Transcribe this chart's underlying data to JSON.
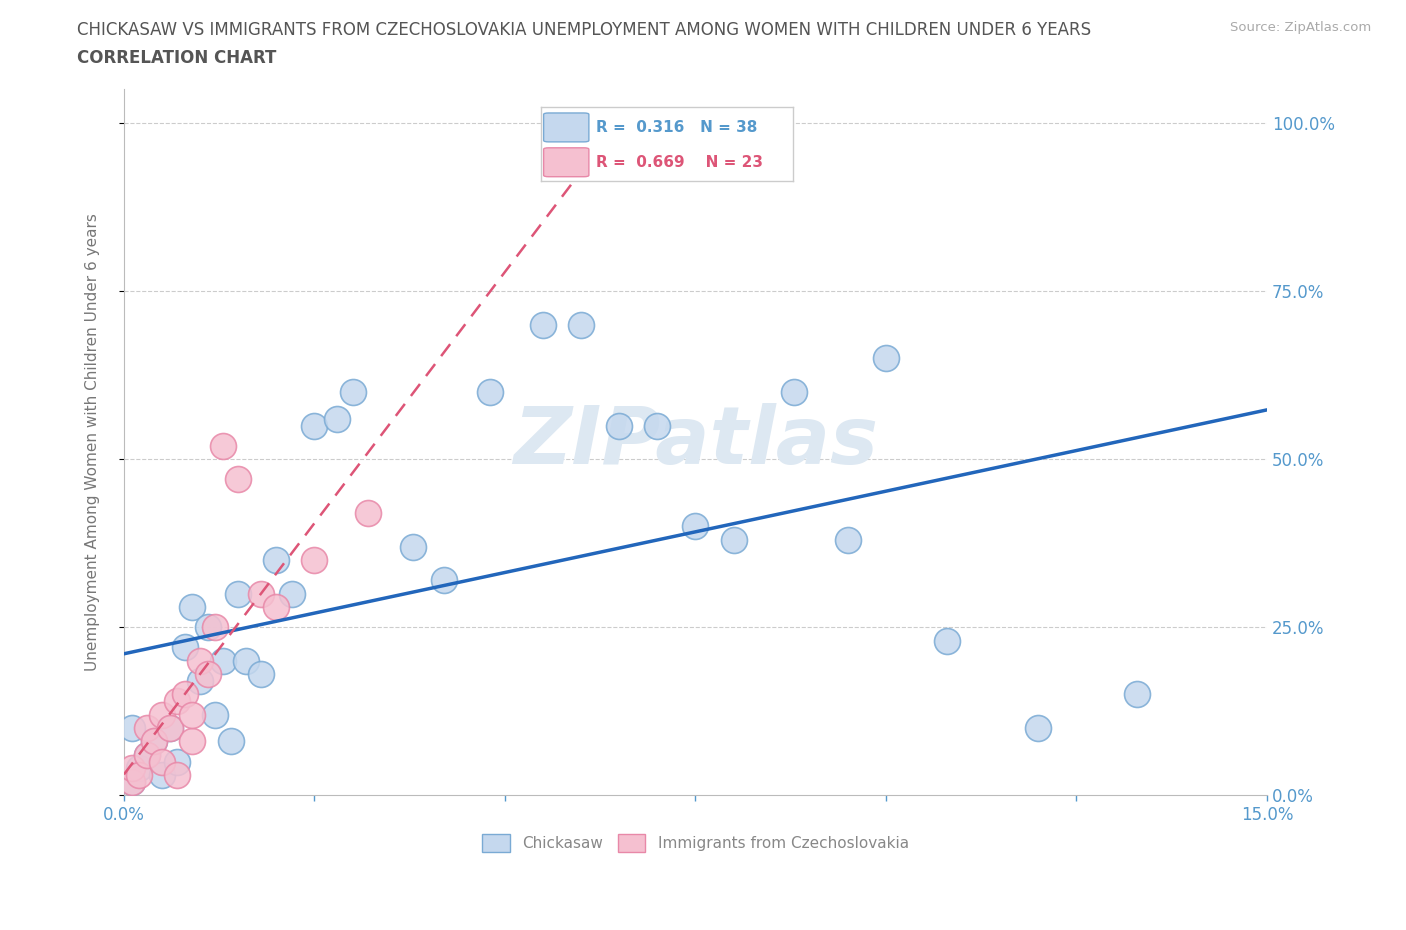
{
  "title_line1": "CHICKASAW VS IMMIGRANTS FROM CZECHOSLOVAKIA UNEMPLOYMENT AMONG WOMEN WITH CHILDREN UNDER 6 YEARS",
  "title_line2": "CORRELATION CHART",
  "source_text": "Source: ZipAtlas.com",
  "ylabel": "Unemployment Among Women with Children Under 6 years",
  "xlim": [
    0.0,
    0.15
  ],
  "ylim": [
    0.0,
    1.05
  ],
  "yticks": [
    0.0,
    0.25,
    0.5,
    0.75,
    1.0
  ],
  "yticklabels_right": [
    "0.0%",
    "25.0%",
    "50.0%",
    "75.0%",
    "100.0%"
  ],
  "xtick_positions": [
    0.0,
    0.025,
    0.05,
    0.075,
    0.1,
    0.125,
    0.15
  ],
  "xtick_labels": [
    "0.0%",
    "",
    "",
    "",
    "",
    "",
    "15.0%"
  ],
  "chickasaw_x": [
    0.001,
    0.001,
    0.002,
    0.003,
    0.004,
    0.005,
    0.006,
    0.007,
    0.008,
    0.009,
    0.01,
    0.011,
    0.012,
    0.013,
    0.014,
    0.015,
    0.016,
    0.018,
    0.02,
    0.022,
    0.025,
    0.028,
    0.03,
    0.038,
    0.042,
    0.048,
    0.055,
    0.06,
    0.065,
    0.07,
    0.075,
    0.08,
    0.088,
    0.095,
    0.1,
    0.108,
    0.12,
    0.133
  ],
  "chickasaw_y": [
    0.02,
    0.1,
    0.04,
    0.06,
    0.08,
    0.03,
    0.1,
    0.05,
    0.22,
    0.28,
    0.17,
    0.25,
    0.12,
    0.2,
    0.08,
    0.3,
    0.2,
    0.18,
    0.35,
    0.3,
    0.55,
    0.56,
    0.6,
    0.37,
    0.32,
    0.6,
    0.7,
    0.7,
    0.55,
    0.55,
    0.4,
    0.38,
    0.6,
    0.38,
    0.65,
    0.23,
    0.1,
    0.15
  ],
  "czech_x": [
    0.001,
    0.001,
    0.002,
    0.003,
    0.003,
    0.004,
    0.005,
    0.005,
    0.006,
    0.007,
    0.007,
    0.008,
    0.009,
    0.009,
    0.01,
    0.011,
    0.012,
    0.013,
    0.015,
    0.018,
    0.02,
    0.025,
    0.032
  ],
  "czech_y": [
    0.02,
    0.04,
    0.03,
    0.06,
    0.1,
    0.08,
    0.05,
    0.12,
    0.1,
    0.14,
    0.03,
    0.15,
    0.08,
    0.12,
    0.2,
    0.18,
    0.25,
    0.52,
    0.47,
    0.3,
    0.28,
    0.35,
    0.42
  ],
  "chickasaw_color": "#c5d8ee",
  "chickasaw_edge": "#7aaad4",
  "czech_color": "#f5c0d0",
  "czech_edge": "#e888a8",
  "trend_blue_color": "#2266bb",
  "trend_pink_color": "#dd5577",
  "trend_pink_dash": true,
  "R_chickasaw": "0.316",
  "N_chickasaw": "38",
  "R_czech": "0.669",
  "N_czech": "23",
  "legend_label_1": "Chickasaw",
  "legend_label_2": "Immigrants from Czechoslovakia",
  "watermark": "ZIPatlas",
  "title_color": "#555555",
  "axis_label_color": "#5599cc",
  "grid_color": "#cccccc",
  "bg_color": "#ffffff",
  "marker_size": 350
}
